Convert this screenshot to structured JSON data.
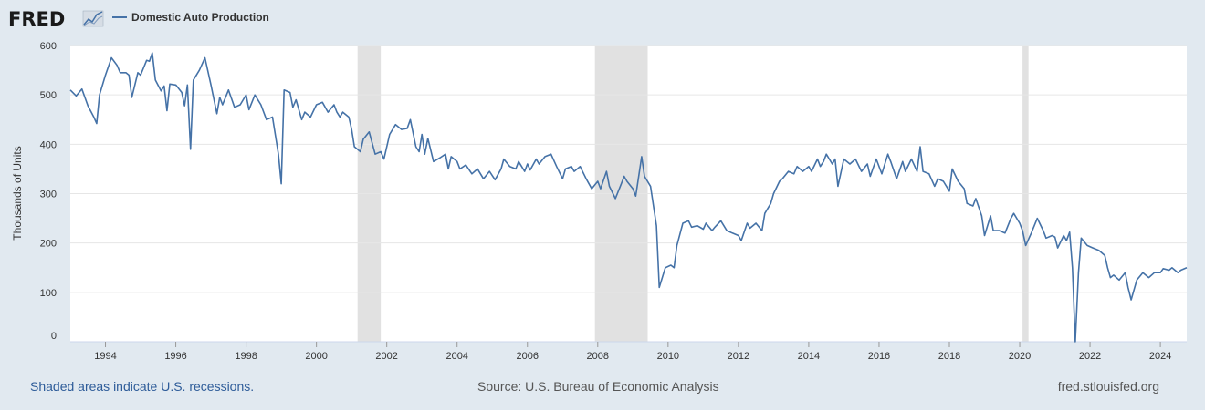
{
  "brand": "FRED",
  "legend_label": "Domestic Auto Production",
  "footer": {
    "recession_note": "Shaded areas indicate U.S. recessions.",
    "source": "Source: U.S. Bureau of Economic Analysis",
    "site": "fred.stlouisfed.org"
  },
  "colors": {
    "line": "#4572a7",
    "recession": "#e1e1e1",
    "background": "#e1e9f0",
    "plot": "#ffffff"
  },
  "chart_data": {
    "type": "line",
    "title": "",
    "xlabel": "",
    "ylabel": "Thousands of Units",
    "xlim": [
      1993.0,
      2024.75
    ],
    "ylim": [
      0,
      600
    ],
    "yticks": [
      0,
      100,
      200,
      300,
      400,
      500,
      600
    ],
    "ytick_labels": [
      "0",
      "100",
      "200",
      "300",
      "400",
      "500",
      "600"
    ],
    "xticks": [
      1994,
      1996,
      1998,
      2000,
      2002,
      2004,
      2006,
      2008,
      2010,
      2012,
      2014,
      2016,
      2018,
      2020,
      2022,
      2024
    ],
    "xtick_labels": [
      "1994",
      "1996",
      "1998",
      "2000",
      "2002",
      "2004",
      "2006",
      "2008",
      "2010",
      "2012",
      "2014",
      "2016",
      "2018",
      "2020",
      "2022",
      "2024"
    ],
    "grid": true,
    "legend_position": "top-left",
    "recessions": [
      [
        2001.17,
        2001.83
      ],
      [
        2007.92,
        2009.42
      ],
      [
        2020.08,
        2020.25
      ]
    ],
    "series": [
      {
        "name": "Domestic Auto Production",
        "points": [
          [
            1993.0,
            510
          ],
          [
            1993.17,
            498
          ],
          [
            1993.33,
            512
          ],
          [
            1993.5,
            478
          ],
          [
            1993.67,
            455
          ],
          [
            1993.75,
            442
          ],
          [
            1993.83,
            500
          ],
          [
            1994.0,
            540
          ],
          [
            1994.17,
            575
          ],
          [
            1994.33,
            560
          ],
          [
            1994.42,
            545
          ],
          [
            1994.58,
            545
          ],
          [
            1994.67,
            540
          ],
          [
            1994.75,
            495
          ],
          [
            1994.92,
            545
          ],
          [
            1995.0,
            540
          ],
          [
            1995.17,
            570
          ],
          [
            1995.25,
            568
          ],
          [
            1995.33,
            585
          ],
          [
            1995.42,
            530
          ],
          [
            1995.58,
            508
          ],
          [
            1995.67,
            518
          ],
          [
            1995.75,
            468
          ],
          [
            1995.83,
            522
          ],
          [
            1996.0,
            520
          ],
          [
            1996.17,
            505
          ],
          [
            1996.25,
            478
          ],
          [
            1996.33,
            520
          ],
          [
            1996.42,
            390
          ],
          [
            1996.5,
            530
          ],
          [
            1996.67,
            550
          ],
          [
            1996.83,
            575
          ],
          [
            1997.0,
            520
          ],
          [
            1997.17,
            462
          ],
          [
            1997.25,
            495
          ],
          [
            1997.33,
            480
          ],
          [
            1997.5,
            510
          ],
          [
            1997.67,
            475
          ],
          [
            1997.83,
            480
          ],
          [
            1998.0,
            500
          ],
          [
            1998.08,
            470
          ],
          [
            1998.25,
            500
          ],
          [
            1998.42,
            480
          ],
          [
            1998.58,
            450
          ],
          [
            1998.75,
            455
          ],
          [
            1998.92,
            380
          ],
          [
            1999.0,
            320
          ],
          [
            1999.08,
            510
          ],
          [
            1999.25,
            505
          ],
          [
            1999.33,
            475
          ],
          [
            1999.42,
            490
          ],
          [
            1999.58,
            450
          ],
          [
            1999.67,
            465
          ],
          [
            1999.83,
            455
          ],
          [
            2000.0,
            480
          ],
          [
            2000.17,
            485
          ],
          [
            2000.33,
            465
          ],
          [
            2000.5,
            480
          ],
          [
            2000.58,
            465
          ],
          [
            2000.67,
            455
          ],
          [
            2000.75,
            465
          ],
          [
            2000.92,
            455
          ],
          [
            2001.0,
            430
          ],
          [
            2001.08,
            395
          ],
          [
            2001.25,
            385
          ],
          [
            2001.33,
            410
          ],
          [
            2001.5,
            425
          ],
          [
            2001.67,
            380
          ],
          [
            2001.83,
            385
          ],
          [
            2001.92,
            370
          ],
          [
            2002.08,
            420
          ],
          [
            2002.25,
            440
          ],
          [
            2002.42,
            430
          ],
          [
            2002.58,
            432
          ],
          [
            2002.67,
            450
          ],
          [
            2002.83,
            395
          ],
          [
            2002.92,
            385
          ],
          [
            2003.0,
            420
          ],
          [
            2003.08,
            380
          ],
          [
            2003.17,
            412
          ],
          [
            2003.33,
            365
          ],
          [
            2003.5,
            372
          ],
          [
            2003.67,
            380
          ],
          [
            2003.75,
            350
          ],
          [
            2003.83,
            375
          ],
          [
            2004.0,
            365
          ],
          [
            2004.08,
            350
          ],
          [
            2004.25,
            358
          ],
          [
            2004.42,
            340
          ],
          [
            2004.58,
            350
          ],
          [
            2004.75,
            330
          ],
          [
            2004.92,
            345
          ],
          [
            2005.08,
            328
          ],
          [
            2005.25,
            350
          ],
          [
            2005.33,
            370
          ],
          [
            2005.5,
            355
          ],
          [
            2005.67,
            350
          ],
          [
            2005.75,
            365
          ],
          [
            2005.92,
            345
          ],
          [
            2006.0,
            360
          ],
          [
            2006.08,
            348
          ],
          [
            2006.25,
            370
          ],
          [
            2006.33,
            360
          ],
          [
            2006.5,
            375
          ],
          [
            2006.67,
            380
          ],
          [
            2006.83,
            355
          ],
          [
            2007.0,
            330
          ],
          [
            2007.08,
            350
          ],
          [
            2007.25,
            355
          ],
          [
            2007.33,
            345
          ],
          [
            2007.5,
            355
          ],
          [
            2007.67,
            330
          ],
          [
            2007.83,
            310
          ],
          [
            2008.0,
            325
          ],
          [
            2008.08,
            310
          ],
          [
            2008.25,
            345
          ],
          [
            2008.33,
            315
          ],
          [
            2008.5,
            290
          ],
          [
            2008.67,
            320
          ],
          [
            2008.75,
            335
          ],
          [
            2008.83,
            325
          ],
          [
            2009.0,
            310
          ],
          [
            2009.08,
            295
          ],
          [
            2009.25,
            375
          ],
          [
            2009.33,
            335
          ],
          [
            2009.5,
            315
          ],
          [
            2009.67,
            235
          ],
          [
            2009.75,
            110
          ],
          [
            2009.92,
            150
          ],
          [
            2010.08,
            155
          ],
          [
            2010.17,
            150
          ],
          [
            2010.25,
            195
          ],
          [
            2010.42,
            240
          ],
          [
            2010.58,
            245
          ],
          [
            2010.67,
            232
          ],
          [
            2010.83,
            235
          ],
          [
            2011.0,
            228
          ],
          [
            2011.08,
            240
          ],
          [
            2011.25,
            225
          ],
          [
            2011.33,
            232
          ],
          [
            2011.5,
            245
          ],
          [
            2011.67,
            225
          ],
          [
            2011.83,
            220
          ],
          [
            2012.0,
            215
          ],
          [
            2012.08,
            205
          ],
          [
            2012.25,
            240
          ],
          [
            2012.33,
            230
          ],
          [
            2012.5,
            240
          ],
          [
            2012.67,
            225
          ],
          [
            2012.75,
            260
          ],
          [
            2012.92,
            280
          ],
          [
            2013.0,
            300
          ],
          [
            2013.17,
            325
          ],
          [
            2013.25,
            330
          ],
          [
            2013.42,
            345
          ],
          [
            2013.58,
            340
          ],
          [
            2013.67,
            355
          ],
          [
            2013.83,
            345
          ],
          [
            2014.0,
            355
          ],
          [
            2014.08,
            345
          ],
          [
            2014.25,
            370
          ],
          [
            2014.33,
            355
          ],
          [
            2014.42,
            365
          ],
          [
            2014.5,
            380
          ],
          [
            2014.67,
            360
          ],
          [
            2014.75,
            370
          ],
          [
            2014.83,
            315
          ],
          [
            2015.0,
            370
          ],
          [
            2015.17,
            360
          ],
          [
            2015.33,
            370
          ],
          [
            2015.5,
            345
          ],
          [
            2015.67,
            360
          ],
          [
            2015.75,
            335
          ],
          [
            2015.92,
            370
          ],
          [
            2016.08,
            340
          ],
          [
            2016.25,
            380
          ],
          [
            2016.33,
            365
          ],
          [
            2016.5,
            330
          ],
          [
            2016.67,
            365
          ],
          [
            2016.75,
            345
          ],
          [
            2016.92,
            370
          ],
          [
            2017.08,
            345
          ],
          [
            2017.17,
            395
          ],
          [
            2017.25,
            345
          ],
          [
            2017.42,
            340
          ],
          [
            2017.58,
            315
          ],
          [
            2017.67,
            330
          ],
          [
            2017.83,
            325
          ],
          [
            2018.0,
            305
          ],
          [
            2018.08,
            350
          ],
          [
            2018.25,
            325
          ],
          [
            2018.42,
            310
          ],
          [
            2018.5,
            280
          ],
          [
            2018.67,
            275
          ],
          [
            2018.75,
            290
          ],
          [
            2018.92,
            255
          ],
          [
            2019.0,
            215
          ],
          [
            2019.17,
            255
          ],
          [
            2019.25,
            225
          ],
          [
            2019.42,
            225
          ],
          [
            2019.58,
            220
          ],
          [
            2019.75,
            250
          ],
          [
            2019.83,
            260
          ],
          [
            2020.0,
            240
          ],
          [
            2020.08,
            225
          ],
          [
            2020.17,
            195
          ],
          [
            2020.33,
            220
          ],
          [
            2020.5,
            250
          ],
          [
            2020.67,
            225
          ],
          [
            2020.75,
            210
          ],
          [
            2020.92,
            215
          ],
          [
            2021.0,
            212
          ],
          [
            2021.08,
            190
          ],
          [
            2021.25,
            215
          ],
          [
            2021.33,
            205
          ],
          [
            2021.42,
            222
          ],
          [
            2021.5,
            150
          ],
          [
            2021.58,
            0
          ],
          [
            2021.67,
            140
          ],
          [
            2021.75,
            210
          ],
          [
            2021.92,
            195
          ],
          [
            2022.08,
            190
          ],
          [
            2022.25,
            185
          ],
          [
            2022.42,
            175
          ],
          [
            2022.5,
            150
          ],
          [
            2022.58,
            130
          ],
          [
            2022.67,
            135
          ],
          [
            2022.83,
            125
          ],
          [
            2023.0,
            140
          ],
          [
            2023.08,
            110
          ],
          [
            2023.17,
            85
          ],
          [
            2023.33,
            125
          ],
          [
            2023.5,
            140
          ],
          [
            2023.67,
            130
          ],
          [
            2023.83,
            140
          ],
          [
            2024.0,
            140
          ],
          [
            2024.08,
            148
          ],
          [
            2024.25,
            145
          ],
          [
            2024.33,
            150
          ],
          [
            2024.5,
            140
          ],
          [
            2024.58,
            145
          ],
          [
            2024.75,
            150
          ]
        ]
      }
    ]
  }
}
